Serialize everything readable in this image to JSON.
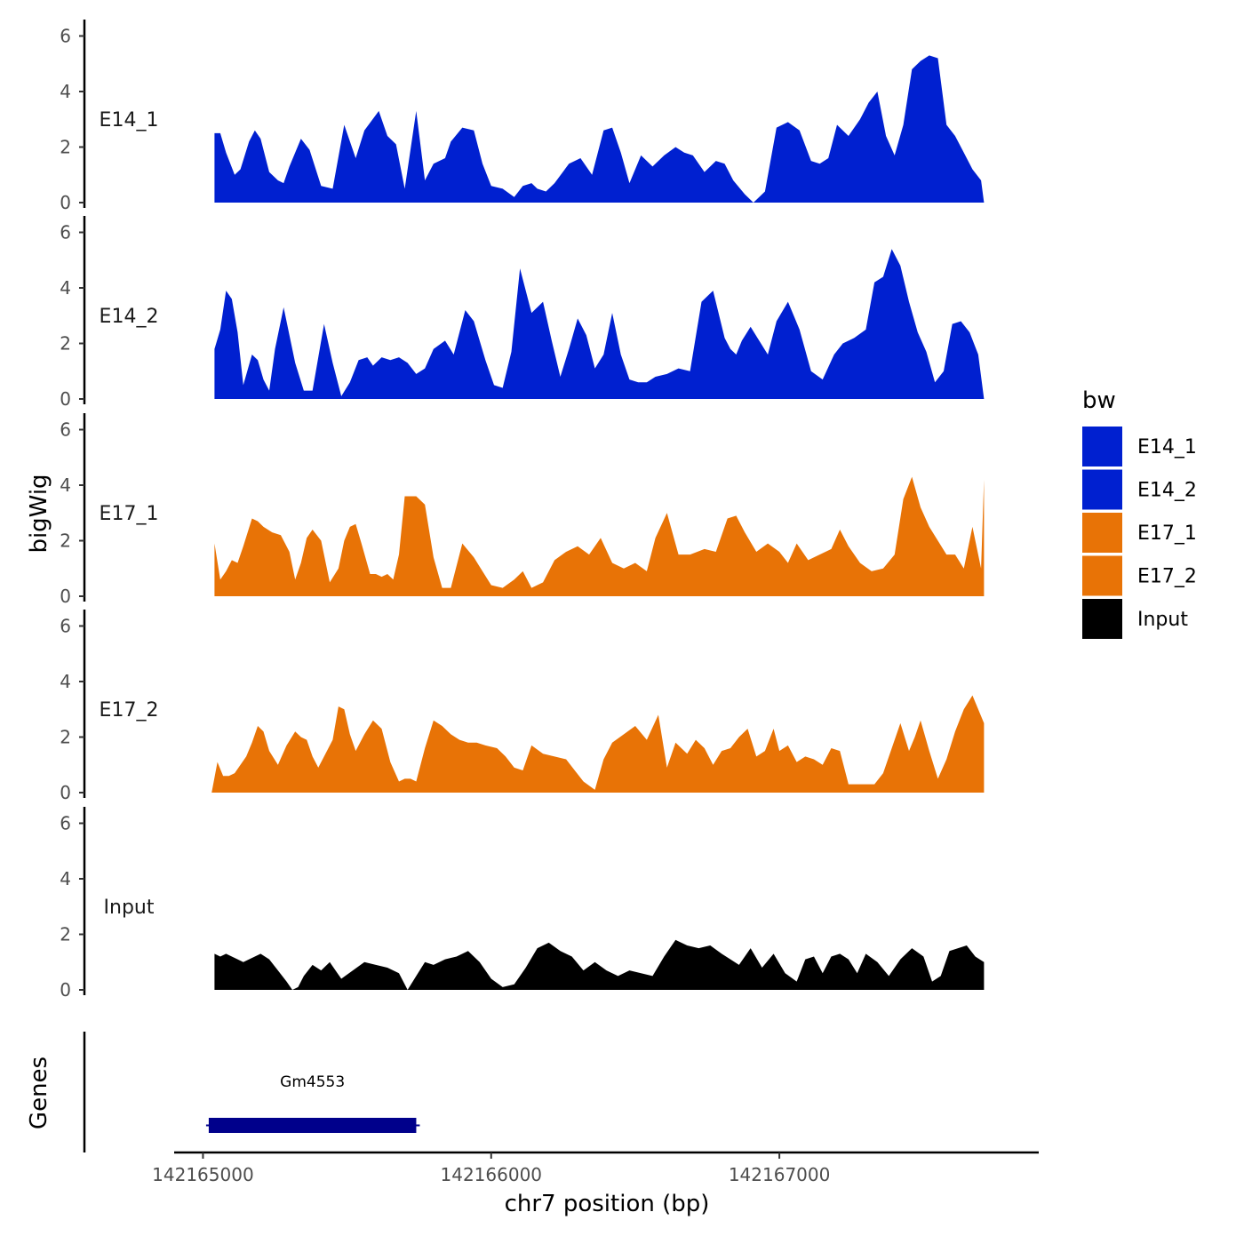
{
  "chart_data": {
    "type": "area",
    "xlabel": "chr7 position (bp)",
    "ylabel": "bigWig",
    "genes_panel_label": "Genes",
    "xlim": [
      142164900,
      142167900
    ],
    "x_ticks": [
      142165000,
      142166000,
      142167000
    ],
    "x_tick_labels": [
      "142165000",
      "142166000",
      "142167000"
    ],
    "ylim": [
      0,
      6.4
    ],
    "y_ticks": [
      0,
      2,
      4,
      6
    ],
    "y_tick_labels": [
      "0",
      "2",
      "4",
      "6"
    ],
    "legend": {
      "title": "bw",
      "position": "right",
      "entries": [
        {
          "label": "E14_1",
          "color": "#0020d0"
        },
        {
          "label": "E14_2",
          "color": "#0020d0"
        },
        {
          "label": "E17_1",
          "color": "#e87306"
        },
        {
          "label": "E17_2",
          "color": "#e87306"
        },
        {
          "label": "Input",
          "color": "#000000"
        }
      ]
    },
    "series": [
      {
        "name": "E14_1",
        "color": "#0020d0",
        "x": [
          142165040,
          142165060,
          142165080,
          142165110,
          142165130,
          142165160,
          142165180,
          142165200,
          142165230,
          142165260,
          142165280,
          142165300,
          142165340,
          142165370,
          142165410,
          142165450,
          142165490,
          142165530,
          142165560,
          142165610,
          142165640,
          142165670,
          142165700,
          142165740,
          142165770,
          142165800,
          142165840,
          142165860,
          142165900,
          142165940,
          142165970,
          142166000,
          142166040,
          142166080,
          142166110,
          142166140,
          142166160,
          142166190,
          142166220,
          142166270,
          142166310,
          142166350,
          142166390,
          142166420,
          142166450,
          142166480,
          142166520,
          142166560,
          142166600,
          142166640,
          142166670,
          142166700,
          142166740,
          142166780,
          142166810,
          142166840,
          142166880,
          142166910,
          142166950,
          142166990,
          142167030,
          142167070,
          142167110,
          142167140,
          142167170,
          142167200,
          142167240,
          142167280,
          142167310,
          142167340,
          142167370,
          142167400,
          142167430,
          142167460,
          142167490,
          142167520,
          142167550,
          142167580,
          142167610,
          142167640,
          142167670,
          142167700,
          142167710
        ],
        "values": [
          2.5,
          2.5,
          1.8,
          1.0,
          1.2,
          2.2,
          2.6,
          2.3,
          1.1,
          0.8,
          0.7,
          1.3,
          2.3,
          1.9,
          0.6,
          0.5,
          2.8,
          1.6,
          2.6,
          3.3,
          2.4,
          2.1,
          0.5,
          3.3,
          0.8,
          1.4,
          1.6,
          2.2,
          2.7,
          2.6,
          1.4,
          0.6,
          0.5,
          0.2,
          0.6,
          0.7,
          0.5,
          0.4,
          0.7,
          1.4,
          1.6,
          1.0,
          2.6,
          2.7,
          1.8,
          0.7,
          1.7,
          1.3,
          1.7,
          2.0,
          1.8,
          1.7,
          1.1,
          1.5,
          1.4,
          0.8,
          0.3,
          0.0,
          0.4,
          2.7,
          2.9,
          2.6,
          1.5,
          1.4,
          1.6,
          2.8,
          2.4,
          3.0,
          3.6,
          4.0,
          2.4,
          1.7,
          2.8,
          4.8,
          5.1,
          5.3,
          5.2,
          2.8,
          2.4,
          1.8,
          1.2,
          0.8,
          0.0
        ]
      },
      {
        "name": "E14_2",
        "color": "#0020d0",
        "x": [
          142165040,
          142165060,
          142165080,
          142165100,
          142165120,
          142165140,
          142165170,
          142165190,
          142165210,
          142165230,
          142165250,
          142165280,
          142165320,
          142165350,
          142165380,
          142165420,
          142165450,
          142165480,
          142165510,
          142165540,
          142165570,
          142165590,
          142165620,
          142165650,
          142165680,
          142165710,
          142165740,
          142165770,
          142165800,
          142165840,
          142165870,
          142165910,
          142165940,
          142165980,
          142166010,
          142166040,
          142166070,
          142166100,
          142166140,
          142166180,
          142166210,
          142166240,
          142166270,
          142166300,
          142166330,
          142166360,
          142166390,
          142166420,
          142166450,
          142166480,
          142166510,
          142166540,
          142166570,
          142166610,
          142166650,
          142166690,
          142166730,
          142166770,
          142166810,
          142166830,
          142166850,
          142166870,
          142166900,
          142166930,
          142166960,
          142166990,
          142167030,
          142167070,
          142167110,
          142167150,
          142167190,
          142167220,
          142167260,
          142167300,
          142167330,
          142167360,
          142167390,
          142167420,
          142167450,
          142167480,
          142167510,
          142167540,
          142167570,
          142167600,
          142167630,
          142167660,
          142167690,
          142167710
        ],
        "values": [
          1.8,
          2.5,
          3.9,
          3.6,
          2.4,
          0.5,
          1.6,
          1.4,
          0.7,
          0.3,
          1.8,
          3.3,
          1.3,
          0.3,
          0.3,
          2.7,
          1.3,
          0.1,
          0.6,
          1.4,
          1.5,
          1.2,
          1.5,
          1.4,
          1.5,
          1.3,
          0.9,
          1.1,
          1.8,
          2.1,
          1.6,
          3.2,
          2.8,
          1.4,
          0.5,
          0.4,
          1.7,
          4.7,
          3.1,
          3.5,
          2.1,
          0.8,
          1.8,
          2.9,
          2.3,
          1.1,
          1.6,
          3.1,
          1.6,
          0.7,
          0.6,
          0.6,
          0.8,
          0.9,
          1.1,
          1.0,
          3.5,
          3.9,
          2.2,
          1.8,
          1.6,
          2.1,
          2.6,
          2.1,
          1.6,
          2.8,
          3.5,
          2.5,
          1.0,
          0.7,
          1.6,
          2.0,
          2.2,
          2.5,
          4.2,
          4.4,
          5.4,
          4.8,
          3.5,
          2.4,
          1.7,
          0.6,
          1.0,
          2.7,
          2.8,
          2.4,
          1.6,
          0.0
        ]
      },
      {
        "name": "E17_1",
        "color": "#e87306",
        "x": [
          142165040,
          142165060,
          142165080,
          142165100,
          142165120,
          142165140,
          142165170,
          142165190,
          142165210,
          142165240,
          142165270,
          142165300,
          142165320,
          142165340,
          142165360,
          142165380,
          142165410,
          142165440,
          142165470,
          142165490,
          142165510,
          142165530,
          142165550,
          142165580,
          142165600,
          142165620,
          142165640,
          142165660,
          142165680,
          142165700,
          142165740,
          142165770,
          142165800,
          142165830,
          142165860,
          142165900,
          142165940,
          142165970,
          142166000,
          142166040,
          142166080,
          142166110,
          142166140,
          142166180,
          142166220,
          142166260,
          142166300,
          142166340,
          142166380,
          142166420,
          142166460,
          142166500,
          142166540,
          142166570,
          142166610,
          142166650,
          142166690,
          142166740,
          142166780,
          142166820,
          142166850,
          142166880,
          142166920,
          142166960,
          142167000,
          142167030,
          142167060,
          142167100,
          142167140,
          142167180,
          142167210,
          142167240,
          142167280,
          142167320,
          142167360,
          142167400,
          142167430,
          142167460,
          142167490,
          142167520,
          142167550,
          142167580,
          142167610,
          142167640,
          142167670,
          142167700,
          142167710
        ],
        "values": [
          1.9,
          0.6,
          0.9,
          1.3,
          1.2,
          1.8,
          2.8,
          2.7,
          2.5,
          2.3,
          2.2,
          1.6,
          0.6,
          1.2,
          2.1,
          2.4,
          2.0,
          0.5,
          1.0,
          2.0,
          2.5,
          2.6,
          1.9,
          0.8,
          0.8,
          0.7,
          0.8,
          0.6,
          1.5,
          3.6,
          3.6,
          3.3,
          1.4,
          0.3,
          0.3,
          1.9,
          1.4,
          0.9,
          0.4,
          0.3,
          0.6,
          0.9,
          0.3,
          0.5,
          1.3,
          1.6,
          1.8,
          1.5,
          2.1,
          1.2,
          1.0,
          1.2,
          0.9,
          2.1,
          3.0,
          1.5,
          1.5,
          1.7,
          1.6,
          2.8,
          2.9,
          2.3,
          1.6,
          1.9,
          1.6,
          1.2,
          1.9,
          1.3,
          1.5,
          1.7,
          2.4,
          1.8,
          1.2,
          0.9,
          1.0,
          1.5,
          3.5,
          4.3,
          3.2,
          2.5,
          2.0,
          1.5,
          1.5,
          1.0,
          2.5,
          1.0,
          4.2
        ]
      },
      {
        "name": "E17_2",
        "color": "#e87306",
        "x": [
          142165030,
          142165050,
          142165070,
          142165090,
          142165110,
          142165130,
          142165150,
          142165170,
          142165190,
          142165210,
          142165230,
          142165260,
          142165290,
          142165320,
          142165340,
          142165360,
          142165380,
          142165400,
          142165420,
          142165450,
          142165470,
          142165490,
          142165510,
          142165530,
          142165560,
          142165590,
          142165620,
          142165650,
          142165680,
          142165700,
          142165720,
          142165740,
          142165770,
          142165800,
          142165830,
          142165860,
          142165890,
          142165920,
          142165950,
          142165980,
          142166020,
          142166050,
          142166080,
          142166110,
          142166140,
          142166180,
          142166220,
          142166260,
          142166290,
          142166320,
          142166360,
          142166390,
          142166420,
          142166460,
          142166500,
          142166540,
          142166580,
          142166610,
          142166640,
          142166680,
          142166710,
          142166740,
          142166770,
          142166800,
          142166830,
          142166860,
          142166890,
          142166920,
          142166950,
          142166980,
          142167000,
          142167030,
          142167060,
          142167090,
          142167120,
          142167150,
          142167180,
          142167210,
          142167240,
          142167270,
          142167300,
          142167330,
          142167360,
          142167390,
          142167420,
          142167450,
          142167470,
          142167490,
          142167520,
          142167550,
          142167580,
          142167610,
          142167640,
          142167670,
          142167690,
          142167710
        ],
        "values": [
          0.0,
          1.1,
          0.6,
          0.6,
          0.7,
          1.0,
          1.3,
          1.8,
          2.4,
          2.2,
          1.5,
          1.0,
          1.7,
          2.2,
          2.0,
          1.9,
          1.3,
          0.9,
          1.3,
          1.9,
          3.1,
          3.0,
          2.1,
          1.5,
          2.1,
          2.6,
          2.3,
          1.1,
          0.4,
          0.5,
          0.5,
          0.4,
          1.6,
          2.6,
          2.4,
          2.1,
          1.9,
          1.8,
          1.8,
          1.7,
          1.6,
          1.3,
          0.9,
          0.8,
          1.7,
          1.4,
          1.3,
          1.2,
          0.8,
          0.4,
          0.1,
          1.2,
          1.8,
          2.1,
          2.4,
          1.9,
          2.8,
          0.9,
          1.8,
          1.4,
          1.9,
          1.6,
          1.0,
          1.5,
          1.6,
          2.0,
          2.3,
          1.3,
          1.5,
          2.3,
          1.5,
          1.7,
          1.1,
          1.3,
          1.2,
          1.0,
          1.6,
          1.5,
          0.3,
          0.3,
          0.3,
          0.3,
          0.7,
          1.6,
          2.5,
          1.5,
          2.0,
          2.6,
          1.5,
          0.5,
          1.2,
          2.2,
          3.0,
          3.5,
          3.0,
          2.5
        ]
      },
      {
        "name": "Input",
        "color": "#000000",
        "x": [
          142165040,
          142165060,
          142165080,
          142165100,
          142165120,
          142165140,
          142165160,
          142165180,
          142165200,
          142165230,
          142165260,
          142165290,
          142165310,
          142165330,
          142165350,
          142165380,
          142165410,
          142165440,
          142165480,
          142165520,
          142165560,
          142165600,
          142165640,
          142165680,
          142165710,
          142165740,
          142165770,
          142165800,
          142165840,
          142165880,
          142165920,
          142165960,
          142166000,
          142166040,
          142166080,
          142166120,
          142166160,
          142166200,
          142166240,
          142166280,
          142166320,
          142166360,
          142166400,
          142166440,
          142166480,
          142166520,
          142166560,
          142166600,
          142166640,
          142166680,
          142166720,
          142166760,
          142166800,
          142166830,
          142166860,
          142166900,
          142166940,
          142166980,
          142167020,
          142167060,
          142167090,
          142167120,
          142167150,
          142167180,
          142167210,
          142167240,
          142167270,
          142167300,
          142167340,
          142167380,
          142167420,
          142167460,
          142167500,
          142167530,
          142167560,
          142167590,
          142167620,
          142167650,
          142167680,
          142167710
        ],
        "values": [
          1.3,
          1.2,
          1.3,
          1.2,
          1.1,
          1.0,
          1.1,
          1.2,
          1.3,
          1.1,
          0.7,
          0.3,
          0.0,
          0.1,
          0.5,
          0.9,
          0.7,
          1.0,
          0.4,
          0.7,
          1.0,
          0.9,
          0.8,
          0.6,
          0.0,
          0.5,
          1.0,
          0.9,
          1.1,
          1.2,
          1.4,
          1.0,
          0.4,
          0.1,
          0.2,
          0.8,
          1.5,
          1.7,
          1.4,
          1.2,
          0.7,
          1.0,
          0.7,
          0.5,
          0.7,
          0.6,
          0.5,
          1.2,
          1.8,
          1.6,
          1.5,
          1.6,
          1.3,
          1.1,
          0.9,
          1.5,
          0.8,
          1.3,
          0.6,
          0.3,
          1.1,
          1.2,
          0.6,
          1.2,
          1.3,
          1.1,
          0.6,
          1.3,
          1.0,
          0.5,
          1.1,
          1.5,
          1.2,
          0.3,
          0.5,
          1.4,
          1.5,
          1.6,
          1.2,
          1.0
        ]
      }
    ],
    "genes": [
      {
        "name": "Gm4553",
        "start": 142165020,
        "end": 142165740,
        "color": "#00008b"
      }
    ]
  }
}
